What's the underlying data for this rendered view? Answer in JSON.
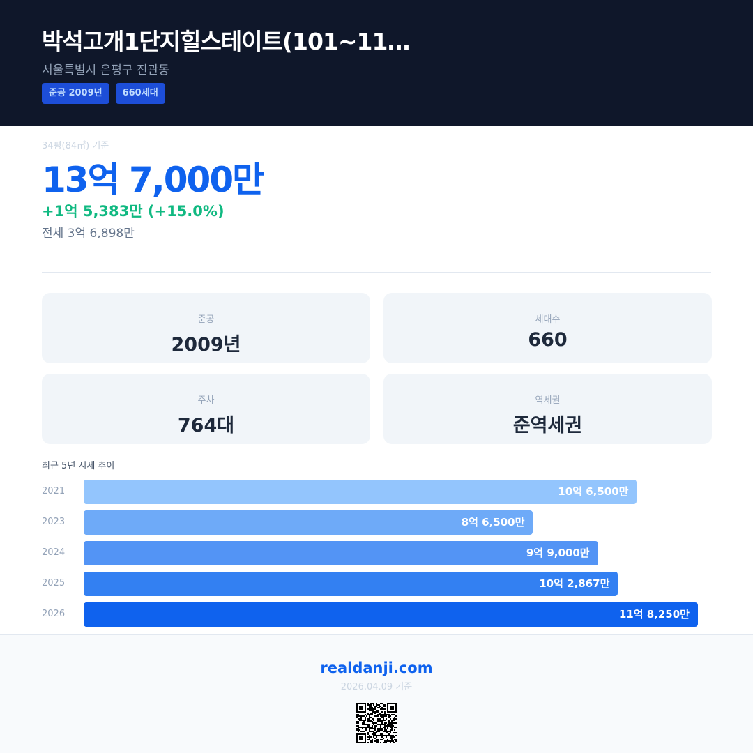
{
  "header": {
    "title": "박석고개1단지힐스테이트(101~11…",
    "address": "서울특별시 은평구 진관동",
    "badges": [
      "준공 2009년",
      "660세대"
    ]
  },
  "summary": {
    "basis": "34평(84㎡) 기준",
    "price": "13억 7,000만",
    "change": "+1억 5,383만 (+15.0%)",
    "jeonse": "전세 3억 6,898만"
  },
  "cards": [
    {
      "label": "준공",
      "value": "2009년"
    },
    {
      "label": "세대수",
      "value": "660"
    },
    {
      "label": "주차",
      "value": "764대"
    },
    {
      "label": "역세권",
      "value": "준역세권"
    }
  ],
  "trend": {
    "title": "최근 5년 시세 추이",
    "rows": [
      {
        "year": "2021",
        "label": "10억 6,500만",
        "value": 106500,
        "color": "#93c5fd"
      },
      {
        "year": "2023",
        "label": "8억 6,500만",
        "value": 86500,
        "color": "#6eaaf8"
      },
      {
        "year": "2024",
        "label": "9억 9,000만",
        "value": 99000,
        "color": "#5394f5"
      },
      {
        "year": "2025",
        "label": "10억 2,867만",
        "value": 102867,
        "color": "#3380f2"
      },
      {
        "year": "2026",
        "label": "11억 8,250만",
        "value": 118250,
        "color": "#0f62ee"
      }
    ]
  },
  "footer": {
    "site": "realdanji.com",
    "date": "2026.04.09 기준"
  }
}
